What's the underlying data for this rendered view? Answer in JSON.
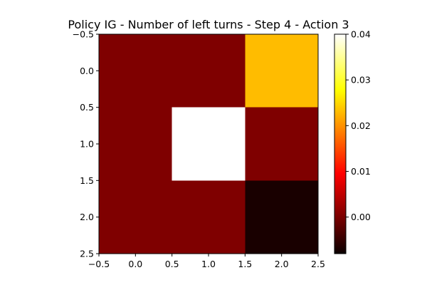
{
  "chart_data": {
    "type": "heatmap",
    "title": "Policy IG - Number of left turns - Step 4 - Action 3",
    "xlabel": "",
    "ylabel": "",
    "grid": false,
    "colormap": "hot",
    "x_tick_labels": [
      "−0.5",
      "0.0",
      "0.5",
      "1.0",
      "1.5",
      "2.0",
      "2.5"
    ],
    "y_tick_labels": [
      "−0.5",
      "0.0",
      "0.5",
      "1.0",
      "1.5",
      "2.0",
      "2.5"
    ],
    "xlim": [
      -0.5,
      2.5
    ],
    "ylim": [
      2.5,
      -0.5
    ],
    "rows": [
      0,
      1,
      2
    ],
    "cols": [
      0,
      1,
      2
    ],
    "values": [
      [
        0.0,
        0.0,
        0.023
      ],
      [
        0.0,
        0.04,
        0.0
      ],
      [
        0.0,
        0.0,
        -0.007
      ]
    ],
    "colorbar": {
      "vmin": -0.008,
      "vmax": 0.04,
      "ticks": [
        0.0,
        0.01,
        0.02,
        0.03,
        0.04
      ],
      "tick_labels": [
        "0.00",
        "0.01",
        "0.02",
        "0.03",
        "0.04"
      ]
    }
  }
}
